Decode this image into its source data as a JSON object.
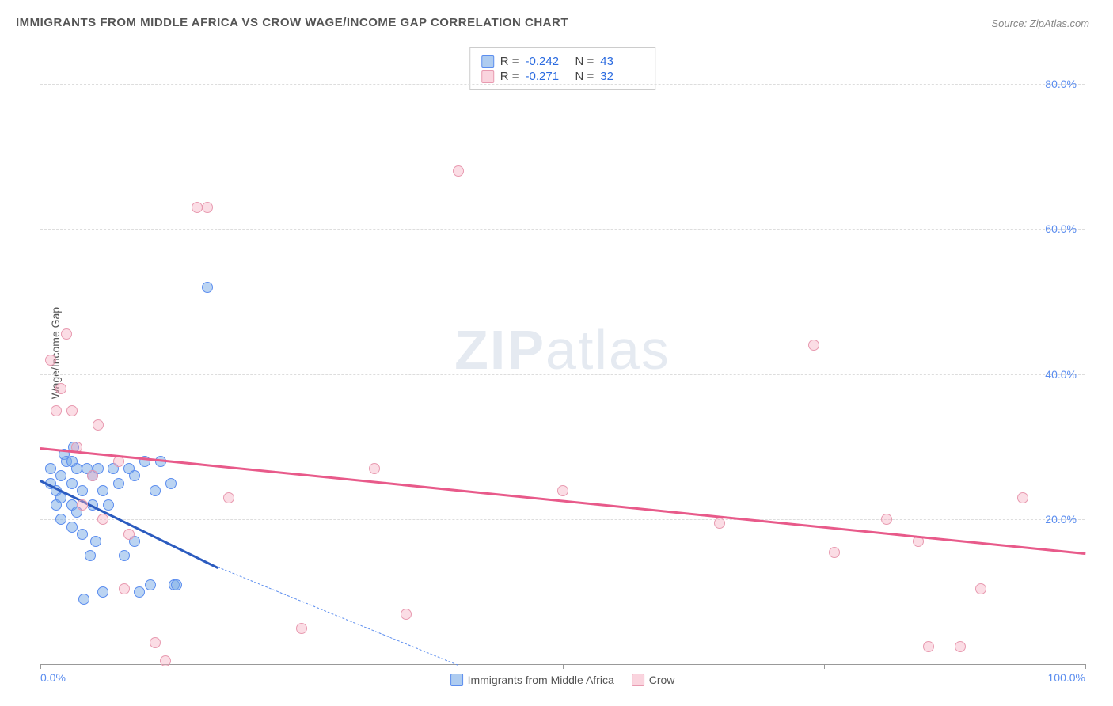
{
  "title": "IMMIGRANTS FROM MIDDLE AFRICA VS CROW WAGE/INCOME GAP CORRELATION CHART",
  "source": "Source: ZipAtlas.com",
  "y_axis_title": "Wage/Income Gap",
  "watermark_bold": "ZIP",
  "watermark_rest": "atlas",
  "chart": {
    "type": "scatter",
    "xlim": [
      0,
      100
    ],
    "ylim": [
      0,
      85
    ],
    "x_ticks": [
      0,
      25,
      50,
      75,
      100
    ],
    "x_tick_labels": [
      "0.0%",
      "",
      "",
      "",
      "100.0%"
    ],
    "y_ticks": [
      20,
      40,
      60,
      80
    ],
    "y_tick_labels": [
      "20.0%",
      "40.0%",
      "60.0%",
      "80.0%"
    ],
    "background_color": "#ffffff",
    "grid_color": "#dddddd",
    "marker_size": 14,
    "series": [
      {
        "name": "Immigrants from Middle Africa",
        "color_fill": "rgba(120,170,230,0.5)",
        "color_stroke": "#5b8def",
        "r": -0.242,
        "n": 43,
        "trend": {
          "x1": 0,
          "y1": 25.5,
          "x2": 17,
          "y2": 13.5,
          "color": "#2b5bbf",
          "dash_x2": 40,
          "dash_y2": 0
        },
        "points": [
          [
            1,
            27
          ],
          [
            1,
            25
          ],
          [
            1.5,
            24
          ],
          [
            2,
            26
          ],
          [
            2,
            23
          ],
          [
            2.3,
            29
          ],
          [
            2.5,
            28
          ],
          [
            3,
            28
          ],
          [
            3,
            25
          ],
          [
            3,
            22
          ],
          [
            3.2,
            30
          ],
          [
            3.5,
            27
          ],
          [
            3.5,
            21
          ],
          [
            4,
            24
          ],
          [
            4,
            18
          ],
          [
            4.2,
            9
          ],
          [
            4.5,
            27
          ],
          [
            4.8,
            15
          ],
          [
            5,
            26
          ],
          [
            5,
            22
          ],
          [
            5.3,
            17
          ],
          [
            5.5,
            27
          ],
          [
            6,
            10
          ],
          [
            6,
            24
          ],
          [
            6.5,
            22
          ],
          [
            7,
            27
          ],
          [
            7.5,
            25
          ],
          [
            8,
            15
          ],
          [
            8.5,
            27
          ],
          [
            9,
            26
          ],
          [
            9,
            17
          ],
          [
            9.5,
            10
          ],
          [
            10,
            28
          ],
          [
            10.5,
            11
          ],
          [
            11,
            24
          ],
          [
            11.5,
            28
          ],
          [
            12.5,
            25
          ],
          [
            12.8,
            11
          ],
          [
            13,
            11
          ],
          [
            16,
            52
          ],
          [
            3,
            19
          ],
          [
            2,
            20
          ],
          [
            1.5,
            22
          ]
        ]
      },
      {
        "name": "Crow",
        "color_fill": "rgba(245,170,190,0.4)",
        "color_stroke": "#e89ab0",
        "r": -0.271,
        "n": 32,
        "trend": {
          "x1": 0,
          "y1": 30,
          "x2": 100,
          "y2": 15.5,
          "color": "#e85a8a"
        },
        "points": [
          [
            1,
            42
          ],
          [
            1.5,
            35
          ],
          [
            2,
            38
          ],
          [
            2.5,
            45.5
          ],
          [
            3,
            35
          ],
          [
            4,
            22
          ],
          [
            5,
            26
          ],
          [
            6,
            20
          ],
          [
            7.5,
            28
          ],
          [
            8,
            10.5
          ],
          [
            8.5,
            18
          ],
          [
            11,
            3
          ],
          [
            12,
            0.5
          ],
          [
            15,
            63
          ],
          [
            16,
            63
          ],
          [
            18,
            23
          ],
          [
            25,
            5
          ],
          [
            32,
            27
          ],
          [
            35,
            7
          ],
          [
            40,
            68
          ],
          [
            50,
            24
          ],
          [
            65,
            19.5
          ],
          [
            74,
            44
          ],
          [
            76,
            15.5
          ],
          [
            81,
            20
          ],
          [
            84,
            17
          ],
          [
            85,
            2.5
          ],
          [
            88,
            2.5
          ],
          [
            90,
            10.5
          ],
          [
            94,
            23
          ],
          [
            3.5,
            30
          ],
          [
            5.5,
            33
          ]
        ]
      }
    ]
  },
  "stats_legend": {
    "rows": [
      {
        "swatch": "blue",
        "r_label": "R =",
        "r_val": "-0.242",
        "n_label": "N =",
        "n_val": "43"
      },
      {
        "swatch": "pink",
        "r_label": "R =",
        "r_val": "-0.271",
        "n_label": "N =",
        "n_val": "32"
      }
    ]
  },
  "bottom_legend": [
    {
      "swatch": "blue",
      "label": "Immigrants from Middle Africa"
    },
    {
      "swatch": "pink",
      "label": "Crow"
    }
  ]
}
